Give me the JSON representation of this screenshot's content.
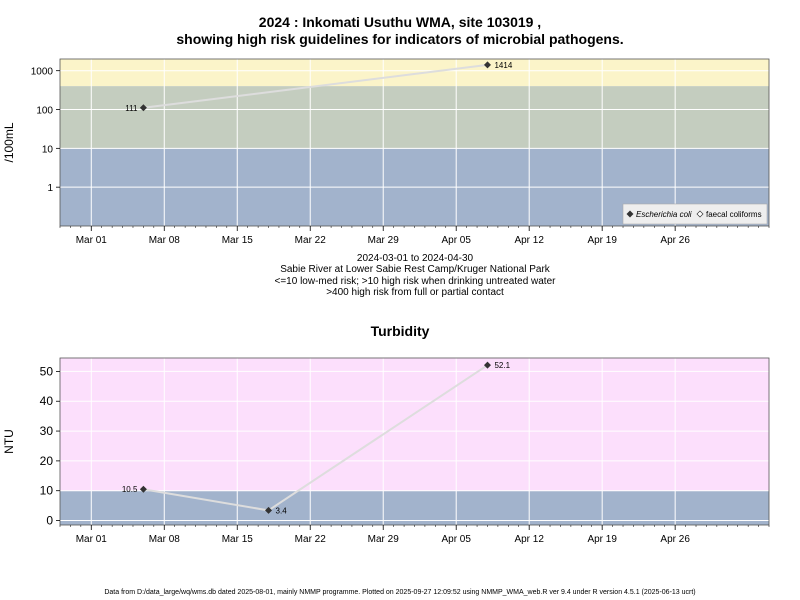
{
  "page": {
    "title_line1": "2024 : Inkomati Usuthu WMA, site 103019 ,",
    "title_line2": "showing high risk guidelines for indicators of microbial pathogens.",
    "subtitle_lines": [
      "2024-03-01 to 2024-04-30",
      "Sabie River at Lower Sabie Rest Camp/Kruger National Park",
      "<=10 low-med risk; >10 high risk when drinking untreated water",
      ">400 high risk from full or partial contact"
    ],
    "chart2_title": "Turbidity",
    "footer": "Data from D:/data_large/wq/wms.db dated 2025-08-01, mainly NMMP programme. Plotted on 2025-09-27 12:09:52 using NMMP_WMA_web.R ver 9.4 under R version 4.5.1 (2025-06-13 ucrt)"
  },
  "colors": {
    "yellow_band": "#fbf4c9",
    "green_band": "#c4cdbf",
    "blue_band": "#a2b3cc",
    "pink_band": "#fcdffc",
    "grid": "#ffffff",
    "line": "#dddddd",
    "point": "#333333"
  },
  "chart_data": [
    {
      "type": "line",
      "title": "",
      "xlabel": "",
      "ylabel": "/100mL",
      "y_scale": "log",
      "xlim": [
        "2024-02-27",
        "2024-05-05"
      ],
      "ylim": [
        0.1,
        2000
      ],
      "yticks": [
        1,
        10,
        100,
        1000
      ],
      "ytick_labels": [
        "1",
        "10",
        "100",
        "1000"
      ],
      "xtick_dates": [
        "2024-03-01",
        "2024-03-08",
        "2024-03-15",
        "2024-03-22",
        "2024-03-29",
        "2024-04-05",
        "2024-04-12",
        "2024-04-19",
        "2024-04-26"
      ],
      "xtick_labels": [
        "Mar 01",
        "Mar 08",
        "Mar 15",
        "Mar 22",
        "Mar 29",
        "Apr 05",
        "Apr 12",
        "Apr 19",
        "Apr 26"
      ],
      "bands": [
        {
          "from": 400,
          "to": 2000,
          "color": "yellow"
        },
        {
          "from": 10,
          "to": 400,
          "color": "green"
        },
        {
          "from": 0.1,
          "to": 10,
          "color": "blue"
        }
      ],
      "grid": true,
      "legend_position": "bottom-right",
      "legend": [
        {
          "label": "Escherichia coli",
          "marker": "filled-diamond",
          "italic": true
        },
        {
          "label": "faecal coliforms",
          "marker": "open-diamond",
          "italic": false
        }
      ],
      "series": [
        {
          "name": "Escherichia coli",
          "x": [
            "2024-03-06",
            "2024-04-08"
          ],
          "values": [
            111,
            1414
          ],
          "labels": [
            "111",
            "1414"
          ]
        }
      ]
    },
    {
      "type": "line",
      "title": "Turbidity",
      "xlabel": "",
      "ylabel": "NTU",
      "y_scale": "linear",
      "xlim": [
        "2024-02-27",
        "2024-05-05"
      ],
      "ylim": [
        -1.5,
        54.5
      ],
      "yticks": [
        0,
        10,
        20,
        30,
        40,
        50
      ],
      "ytick_labels": [
        "0",
        "10",
        "20",
        "30",
        "40",
        "50"
      ],
      "xtick_dates": [
        "2024-03-01",
        "2024-03-08",
        "2024-03-15",
        "2024-03-22",
        "2024-03-29",
        "2024-04-05",
        "2024-04-12",
        "2024-04-19",
        "2024-04-26"
      ],
      "xtick_labels": [
        "Mar 01",
        "Mar 08",
        "Mar 15",
        "Mar 22",
        "Mar 29",
        "Apr 05",
        "Apr 12",
        "Apr 19",
        "Apr 26"
      ],
      "bands": [
        {
          "from": 10,
          "to": 54.5,
          "color": "pink"
        },
        {
          "from": -1.5,
          "to": 10,
          "color": "blue"
        }
      ],
      "grid": true,
      "series": [
        {
          "x": [
            "2024-03-06",
            "2024-03-18",
            "2024-04-08"
          ],
          "values": [
            10.5,
            3.4,
            52.1
          ],
          "labels": [
            "10.5",
            "3.4",
            "52.1"
          ]
        }
      ]
    }
  ]
}
